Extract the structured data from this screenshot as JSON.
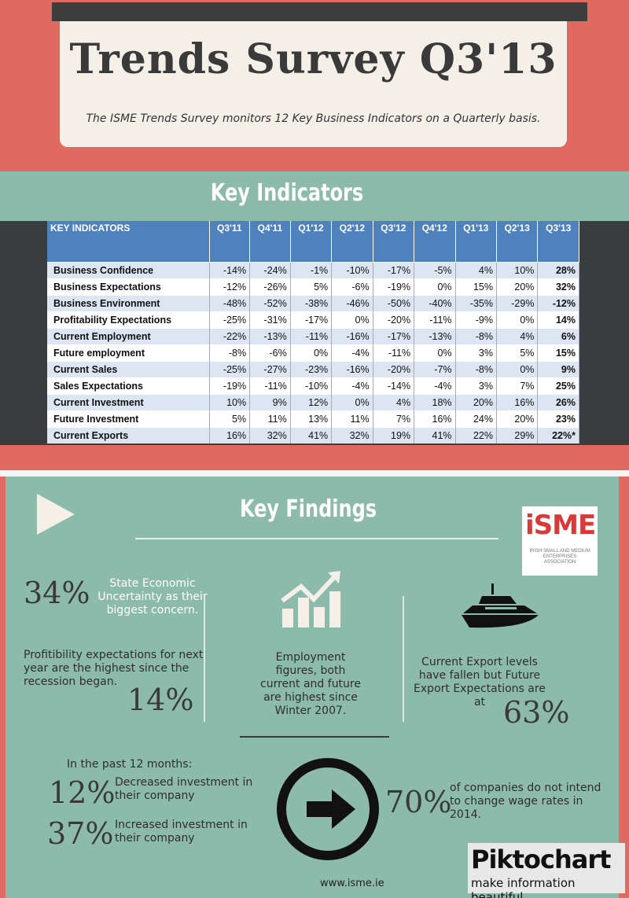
{
  "header": {
    "title": "Trends Survey Q3'13",
    "subtitle": "The ISME Trends Survey monitors 12 Key Business Indicators on a Quarterly basis."
  },
  "key_indicators": {
    "section_title": "Key Indicators",
    "columns": [
      "KEY INDICATORS",
      "Q3'11",
      "Q4'11",
      "Q1'12",
      "Q2'12",
      "Q3'12",
      "Q4'12",
      "Q1'13",
      "Q2'13",
      "Q3'13"
    ],
    "rows": [
      {
        "label": "Business Confidence",
        "values": [
          "-14%",
          "-24%",
          "-1%",
          "-10%",
          "-17%",
          "-5%",
          "4%",
          "10%",
          "28%"
        ]
      },
      {
        "label": "Business Expectations",
        "values": [
          "-12%",
          "-26%",
          "5%",
          "-6%",
          "-19%",
          "0%",
          "15%",
          "20%",
          "32%"
        ]
      },
      {
        "label": "Business Environment",
        "values": [
          "-48%",
          "-52%",
          "-38%",
          "-46%",
          "-50%",
          "-40%",
          "-35%",
          "-29%",
          "-12%"
        ]
      },
      {
        "label": "Profitability Expectations",
        "values": [
          "-25%",
          "-31%",
          "-17%",
          "0%",
          "-20%",
          "-11%",
          "-9%",
          "0%",
          "14%"
        ]
      },
      {
        "label": "Current Employment",
        "values": [
          "-22%",
          "-13%",
          "-11%",
          "-16%",
          "-17%",
          "-13%",
          "-8%",
          "4%",
          "6%"
        ]
      },
      {
        "label": "Future employment",
        "values": [
          "-8%",
          "-6%",
          "0%",
          "-4%",
          "-11%",
          "0%",
          "3%",
          "5%",
          "15%"
        ]
      },
      {
        "label": "Current Sales",
        "values": [
          "-25%",
          "-27%",
          "-23%",
          "-16%",
          "-20%",
          "-7%",
          "-8%",
          "0%",
          "9%"
        ]
      },
      {
        "label": "Sales Expectations",
        "values": [
          "-19%",
          "-11%",
          "-10%",
          "-4%",
          "-14%",
          "-4%",
          "3%",
          "7%",
          "25%"
        ]
      },
      {
        "label": "Current Investment",
        "values": [
          "10%",
          "9%",
          "12%",
          "0%",
          "4%",
          "18%",
          "20%",
          "16%",
          "26%"
        ]
      },
      {
        "label": "Future Investment",
        "values": [
          "5%",
          "11%",
          "13%",
          "11%",
          "7%",
          "16%",
          "24%",
          "20%",
          "23%"
        ]
      },
      {
        "label": "Current Exports",
        "values": [
          "16%",
          "32%",
          "41%",
          "32%",
          "19%",
          "41%",
          "22%",
          "29%",
          "22%*"
        ]
      }
    ]
  },
  "key_findings": {
    "section_title": "Key Findings",
    "logo": {
      "text": "iSME",
      "subtext": "IRISH SMALL AND MEDIUM ENTERPRISES ASSOCIATION"
    },
    "f1": {
      "pct": "34%",
      "text": "State Economic Uncertainty as their biggest concern."
    },
    "f2": {
      "text": "Profitibility expectations for next year are the highest since the recession began.",
      "pct": "14%"
    },
    "f3": {
      "text": "Employment figures, both current and future are highest since Winter 2007."
    },
    "f4": {
      "text": "Current Export levels have fallen but Future Export Expectations are at",
      "pct": "63%"
    },
    "f5": {
      "heading": "In the past 12 months:",
      "a_pct": "12%",
      "a_text": "Decreased investment in their company",
      "b_pct": "37%",
      "b_text": "Increased investment in their company"
    },
    "f6": {
      "pct": "70%",
      "text": "of companies do not intend to change wage rates in 2014."
    },
    "url": "www.isme.ie"
  },
  "branding": {
    "name": "Piktochart",
    "tagline": "make information beautiful"
  },
  "colors": {
    "coral": "#e06a60",
    "sage": "#8cbaab",
    "dark": "#3a3d40",
    "table_header": "#4f81bd"
  }
}
